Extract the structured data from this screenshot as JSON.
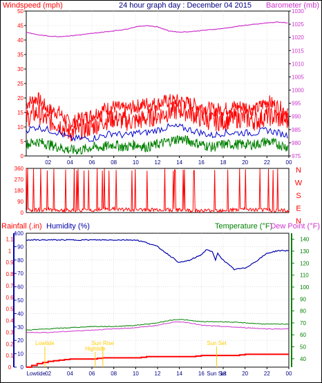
{
  "header": {
    "left_label": "Windspeed (mph)",
    "center_title": "24 hour graph day : December 04 2015",
    "right_label": "Barometer (mb)"
  },
  "bottom_header": {
    "rainfall_label": "Rainfall (.in)",
    "humidity_label": "Humidity (%)",
    "temperature_label": "Temperature (°F)",
    "dewpoint_label": "Dew Point (°F)"
  },
  "x_axis": {
    "ticks": [
      "02",
      "04",
      "06",
      "08",
      "10",
      "12",
      "14",
      "16",
      "18",
      "20",
      "22",
      "00"
    ]
  },
  "annotations": [
    {
      "text": "Lowtide",
      "time": 1.7,
      "panel": "bottom",
      "row": "upper"
    },
    {
      "text": "Sun Rise",
      "time": 7.0,
      "panel": "bottom",
      "row": "upper"
    },
    {
      "text": "Hightide",
      "time": 6.3,
      "panel": "bottom",
      "row": "lower"
    },
    {
      "text": "Sun Set",
      "time": 17.4,
      "panel": "bottom",
      "row": "upper"
    },
    {
      "text": "Lowtide",
      "time": 0.9,
      "panel": "bottom",
      "row": "axis"
    },
    {
      "text": "Sun Set",
      "time": 17.4,
      "panel": "bottom",
      "row": "axis"
    }
  ],
  "colors": {
    "windspeed": "#ff0000",
    "gust": "#ff0000",
    "avg_wind": "#0000cc",
    "wind_low": "#008000",
    "barometer": "#cc33cc",
    "direction": "#ff0000",
    "rain": "#ff0000",
    "humidity": "#0000aa",
    "temperature": "#008000",
    "dewpoint": "#cc33cc",
    "annotation": "#ffcc00"
  },
  "chart_data": [
    {
      "type": "line",
      "title": "24 hour graph day : December 04 2015",
      "xlabel": "",
      "x_range": [
        0,
        24
      ],
      "left_axis": {
        "label": "Windspeed (mph)",
        "ticks": [
          0,
          5,
          10,
          15,
          20,
          25,
          30,
          35,
          40,
          45,
          50
        ],
        "ylim": [
          0,
          50
        ]
      },
      "right_axis": {
        "label": "Barometer (mb)",
        "ticks": [
          975,
          980,
          985,
          990,
          995,
          1000,
          1005,
          1010,
          1015,
          1020,
          1025,
          1030
        ],
        "ylim": [
          975,
          1030
        ]
      },
      "series": [
        {
          "name": "Windspeed (mph)",
          "axis": "left",
          "x": [
            0,
            1,
            2,
            3,
            4,
            5,
            6,
            7,
            8,
            9,
            10,
            11,
            12,
            13,
            14,
            15,
            16,
            17,
            18,
            19,
            20,
            21,
            22,
            23,
            24
          ],
          "y": [
            13,
            15,
            12,
            11,
            8,
            9,
            10,
            12,
            13,
            12,
            12,
            13,
            14,
            15,
            16,
            15,
            13,
            12,
            12,
            13,
            13,
            12,
            14,
            13,
            12
          ]
        },
        {
          "name": "Gust",
          "axis": "left",
          "x": [
            0,
            1,
            2,
            3,
            4,
            5,
            6,
            7,
            8,
            9,
            10,
            11,
            12,
            13,
            14,
            15,
            16,
            17,
            18,
            19,
            20,
            21,
            22,
            23,
            24
          ],
          "y": [
            18,
            20,
            16,
            15,
            11,
            13,
            14,
            16,
            17,
            16,
            17,
            18,
            18,
            19,
            19,
            18,
            17,
            16,
            16,
            17,
            17,
            16,
            19,
            17,
            15
          ]
        },
        {
          "name": "Average",
          "axis": "left",
          "x": [
            0,
            1,
            2,
            3,
            4,
            5,
            6,
            7,
            8,
            9,
            10,
            11,
            12,
            13,
            14,
            15,
            16,
            17,
            18,
            19,
            20,
            21,
            22,
            23,
            24
          ],
          "y": [
            9,
            10,
            9,
            8,
            6,
            6,
            6,
            7,
            8,
            7,
            8,
            8,
            9,
            10,
            10,
            9,
            8,
            7,
            8,
            8,
            8,
            8,
            9,
            8,
            7
          ]
        },
        {
          "name": "Lull",
          "axis": "left",
          "x": [
            0,
            1,
            2,
            3,
            4,
            5,
            6,
            7,
            8,
            9,
            10,
            11,
            12,
            13,
            14,
            15,
            16,
            17,
            18,
            19,
            20,
            21,
            22,
            23,
            24
          ],
          "y": [
            4,
            5,
            4,
            3,
            2,
            2,
            3,
            3,
            4,
            3,
            4,
            3,
            4,
            5,
            6,
            5,
            4,
            3,
            4,
            4,
            4,
            4,
            5,
            4,
            3
          ]
        },
        {
          "name": "Barometer (mb)",
          "axis": "right",
          "x": [
            0,
            1,
            2,
            3,
            4,
            5,
            6,
            7,
            8,
            9,
            10,
            11,
            12,
            13,
            14,
            15,
            16,
            17,
            18,
            19,
            20,
            21,
            22,
            23,
            24
          ],
          "y": [
            1022,
            1021,
            1020.5,
            1020.3,
            1020.6,
            1021,
            1021.5,
            1022,
            1022.5,
            1023,
            1024,
            1024.5,
            1024,
            1022.5,
            1022,
            1022.2,
            1022.6,
            1023,
            1023.4,
            1024,
            1024.6,
            1025,
            1025.5,
            1025.8,
            1025.5
          ]
        }
      ]
    },
    {
      "type": "line",
      "title": "",
      "x_range": [
        0,
        24
      ],
      "left_axis": {
        "label": "",
        "ticks": [
          0,
          90,
          180,
          270,
          360
        ],
        "ylim": [
          0,
          360
        ]
      },
      "right_axis": {
        "label": "",
        "ticks": [
          "N",
          "W",
          "S",
          "E",
          "N"
        ]
      },
      "series": [
        {
          "name": "Wind direction",
          "axis": "left",
          "x": [
            0,
            2,
            4,
            6,
            8,
            10,
            12,
            14,
            16,
            18,
            20,
            22,
            24
          ],
          "y": [
            20,
            25,
            15,
            20,
            30,
            20,
            25,
            20,
            15,
            20,
            25,
            20,
            15
          ]
        }
      ]
    },
    {
      "type": "line",
      "title": "",
      "x_range": [
        0,
        24
      ],
      "left_axis_humidity": {
        "label": "Humidity (%)",
        "ticks": [
          0,
          10,
          20,
          30,
          40,
          50,
          60,
          70,
          80,
          90,
          100
        ],
        "ylim": [
          0,
          100
        ]
      },
      "left_axis_rain": {
        "label": "Rainfall (.in)",
        "ticks": [
          0,
          0.1,
          0.2,
          0.3,
          0.4,
          0.5,
          0.6,
          0.7,
          0.8,
          0.9,
          1,
          1.1
        ],
        "ylim": [
          0,
          1.15
        ]
      },
      "right_axis": {
        "label": "Temperature (°F)",
        "ticks": [
          40,
          50,
          60,
          70,
          80,
          90,
          100,
          110,
          120,
          130,
          140
        ],
        "ylim": [
          33,
          145
        ]
      },
      "series": [
        {
          "name": "Humidity (%)",
          "axis": "humidity",
          "x": [
            0,
            2,
            4,
            6,
            8,
            10,
            11,
            12,
            13,
            14,
            15,
            16,
            16.5,
            17,
            17.3,
            17.5,
            18,
            19,
            20,
            21,
            22,
            23,
            24
          ],
          "y": [
            95,
            95,
            95,
            95,
            95,
            95,
            93,
            90,
            84,
            78,
            80,
            84,
            88,
            86,
            80,
            85,
            80,
            73,
            74,
            79,
            85,
            87,
            87
          ]
        },
        {
          "name": "Rainfall (.in)",
          "axis": "rain",
          "x": [
            0,
            1,
            2,
            3,
            4,
            5,
            6,
            7,
            8,
            9,
            10,
            11,
            12,
            13,
            14,
            15,
            16,
            17,
            18,
            19,
            20,
            21,
            22,
            23,
            24
          ],
          "y": [
            0,
            0.03,
            0.05,
            0.06,
            0.07,
            0.07,
            0.07,
            0.08,
            0.08,
            0.08,
            0.08,
            0.09,
            0.09,
            0.09,
            0.09,
            0.09,
            0.1,
            0.1,
            0.1,
            0.1,
            0.11,
            0.11,
            0.11,
            0.11,
            0.11
          ]
        },
        {
          "name": "Temperature (°F)",
          "axis": "right",
          "x": [
            0,
            2,
            4,
            6,
            8,
            10,
            12,
            13,
            14,
            15,
            16,
            18,
            20,
            22,
            24
          ],
          "y": [
            64,
            65,
            66,
            67,
            67,
            68,
            70,
            72,
            73,
            72,
            71,
            71,
            70,
            69,
            69
          ]
        },
        {
          "name": "Dew Point (°F)",
          "axis": "right",
          "x": [
            0,
            2,
            4,
            6,
            8,
            10,
            12,
            13,
            14,
            15,
            16,
            18,
            20,
            22,
            24
          ],
          "y": [
            62,
            62,
            63,
            64,
            65,
            66,
            68,
            70,
            71,
            70,
            68,
            67,
            66,
            65,
            65
          ]
        }
      ]
    }
  ]
}
